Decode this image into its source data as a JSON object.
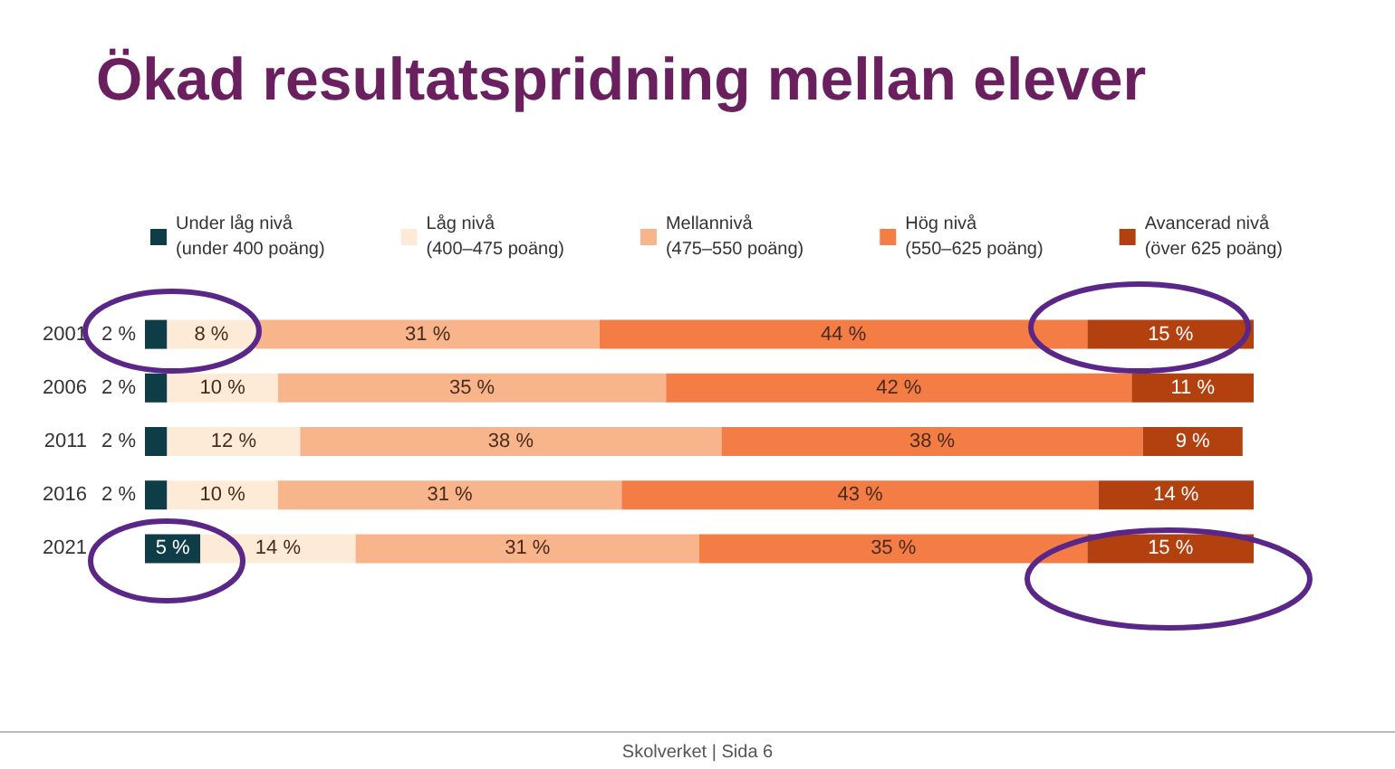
{
  "chart_data": {
    "type": "bar",
    "orientation": "horizontal",
    "stacked": true,
    "title": "Ökad resultatspridning mellan elever",
    "categories": [
      "2001",
      "2006",
      "2011",
      "2016",
      "2021"
    ],
    "series": [
      {
        "name": "Under låg nivå\n(under 400 poäng)",
        "color": "#0f3d47",
        "values": [
          2,
          2,
          2,
          2,
          5
        ],
        "value_labels": [
          "2 %",
          "2 %",
          "2 %",
          "2 %",
          "5 %"
        ]
      },
      {
        "name": "Låg nivå\n(400–475 poäng)",
        "color": "#fdebd8",
        "values": [
          8,
          10,
          12,
          10,
          14
        ],
        "value_labels": [
          "8 %",
          "10 %",
          "12 %",
          "10 %",
          "14 %"
        ]
      },
      {
        "name": "Mellannivå\n(475–550 poäng)",
        "color": "#f8b58c",
        "values": [
          31,
          35,
          38,
          31,
          31
        ],
        "value_labels": [
          "31 %",
          "35 %",
          "38 %",
          "31 %",
          "31 %"
        ]
      },
      {
        "name": "Hög nivå\n(550–625 poäng)",
        "color": "#f47c45",
        "values": [
          44,
          42,
          38,
          43,
          35
        ],
        "value_labels": [
          "44 %",
          "42 %",
          "38 %",
          "43 %",
          "35 %"
        ]
      },
      {
        "name": "Avancerad nivå\n(över 625 poäng)",
        "color": "#b3400f",
        "values": [
          15,
          11,
          9,
          14,
          15
        ],
        "value_labels": [
          "15 %",
          "11 %",
          "9 %",
          "14 %",
          "15 %"
        ]
      }
    ],
    "tick_labels": "y",
    "grid": false,
    "legend": "top",
    "annotations": [
      "Skolverket | Sida 6"
    ]
  }
}
